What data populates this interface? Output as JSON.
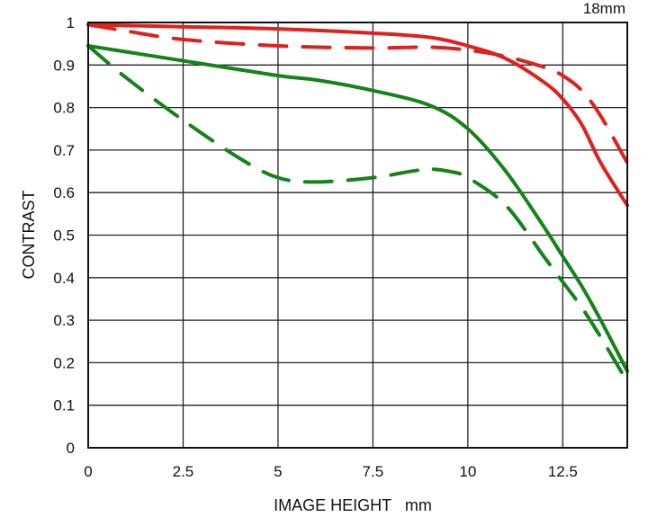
{
  "chart_data": {
    "type": "line",
    "title": "18mm",
    "xlabel": "IMAGE HEIGHT   mm",
    "ylabel": "CONTRAST",
    "xlim": [
      0,
      14.2
    ],
    "ylim": [
      0,
      1
    ],
    "xticks": [
      0,
      2.5,
      5,
      7.5,
      10,
      12.5
    ],
    "xtick_labels": [
      "0",
      "2.5",
      "5",
      "7.5",
      "10",
      "12.5"
    ],
    "yticks": [
      0,
      0.1,
      0.2,
      0.3,
      0.4,
      0.5,
      0.6,
      0.7,
      0.8,
      0.9,
      1
    ],
    "ytick_labels": [
      "0",
      "0.1",
      "0.2",
      "0.3",
      "0.4",
      "0.5",
      "0.6",
      "0.7",
      "0.8",
      "0.9",
      "1"
    ],
    "grid": true,
    "series": [
      {
        "color": "#e0201c",
        "style": "solid",
        "x": [
          0,
          2.5,
          5,
          7.5,
          9,
          10,
          11,
          12,
          12.5,
          13,
          13.5,
          14.2
        ],
        "y": [
          0.995,
          0.99,
          0.985,
          0.975,
          0.965,
          0.945,
          0.915,
          0.86,
          0.82,
          0.76,
          0.67,
          0.57
        ]
      },
      {
        "color": "#e0201c",
        "style": "dashed",
        "x": [
          0,
          1,
          2.5,
          5,
          7.5,
          9,
          10,
          11,
          12,
          12.5,
          13,
          13.5,
          14.2
        ],
        "y": [
          0.995,
          0.98,
          0.96,
          0.945,
          0.94,
          0.942,
          0.935,
          0.92,
          0.895,
          0.875,
          0.84,
          0.78,
          0.67
        ]
      },
      {
        "color": "#16821a",
        "style": "solid",
        "x": [
          0,
          2.5,
          5,
          6,
          7.5,
          9,
          10,
          11,
          12,
          12.5,
          13,
          13.5,
          14.2
        ],
        "y": [
          0.945,
          0.91,
          0.875,
          0.865,
          0.84,
          0.805,
          0.75,
          0.65,
          0.52,
          0.45,
          0.38,
          0.3,
          0.18
        ]
      },
      {
        "color": "#16821a",
        "style": "dashed",
        "x": [
          0,
          1,
          2.5,
          4,
          5,
          6,
          7.5,
          8.5,
          9,
          9.5,
          10,
          11,
          12,
          12.5,
          13,
          13.5,
          14.2
        ],
        "y": [
          0.945,
          0.87,
          0.77,
          0.68,
          0.635,
          0.625,
          0.635,
          0.65,
          0.655,
          0.65,
          0.635,
          0.57,
          0.45,
          0.39,
          0.33,
          0.26,
          0.155
        ]
      }
    ]
  }
}
